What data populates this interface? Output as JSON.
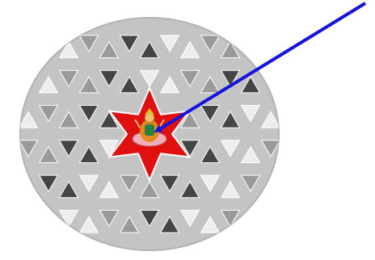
{
  "diagram": {
    "shapes": {
      "disc": "grey-oval-plate",
      "lattice": "triangular-lattice",
      "center": "six-pointed-star",
      "figure": "deity-figure-image",
      "pointer": "arrow"
    },
    "colors": {
      "background": "#ffffff",
      "disc": "#c4c4c4",
      "disc_edge": "#b2b2b2",
      "tile_light": "#ededed",
      "tile_mid": "#9a9a9a",
      "tile_dark": "#454545",
      "star": "#e01010",
      "arrow": "#1414dc"
    }
  }
}
